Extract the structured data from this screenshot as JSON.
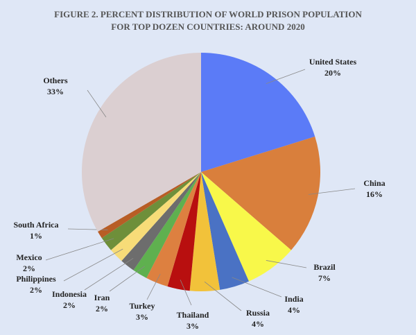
{
  "chart_data": {
    "type": "pie",
    "title": [
      "FIGURE 2. PERCENT DISTRIBUTION OF WORLD PRISON POPULATION",
      "FOR TOP DOZEN COUNTRIES: AROUND 2020"
    ],
    "categories": [
      "United States",
      "China",
      "Brazil",
      "India",
      "Russia",
      "Thailand",
      "Turkey",
      "Iran",
      "Indonesia",
      "Philippines",
      "Mexico",
      "South Africa",
      "Others"
    ],
    "values": [
      20,
      16,
      7,
      4,
      4,
      3,
      3,
      2,
      2,
      2,
      2,
      1,
      33
    ],
    "value_labels": [
      "20%",
      "16%",
      "7%",
      "4%",
      "4%",
      "3%",
      "3%",
      "2%",
      "2%",
      "2%",
      "2%",
      "1%",
      "33%"
    ],
    "colors": [
      "#5b7bf7",
      "#d97f3c",
      "#f8f84a",
      "#4a72c4",
      "#f2c23a",
      "#b80f0f",
      "#dd8040",
      "#5fb04f",
      "#6d6d6d",
      "#f7dc78",
      "#6e8f3a",
      "#b85d25",
      "#dbcfd1"
    ]
  }
}
